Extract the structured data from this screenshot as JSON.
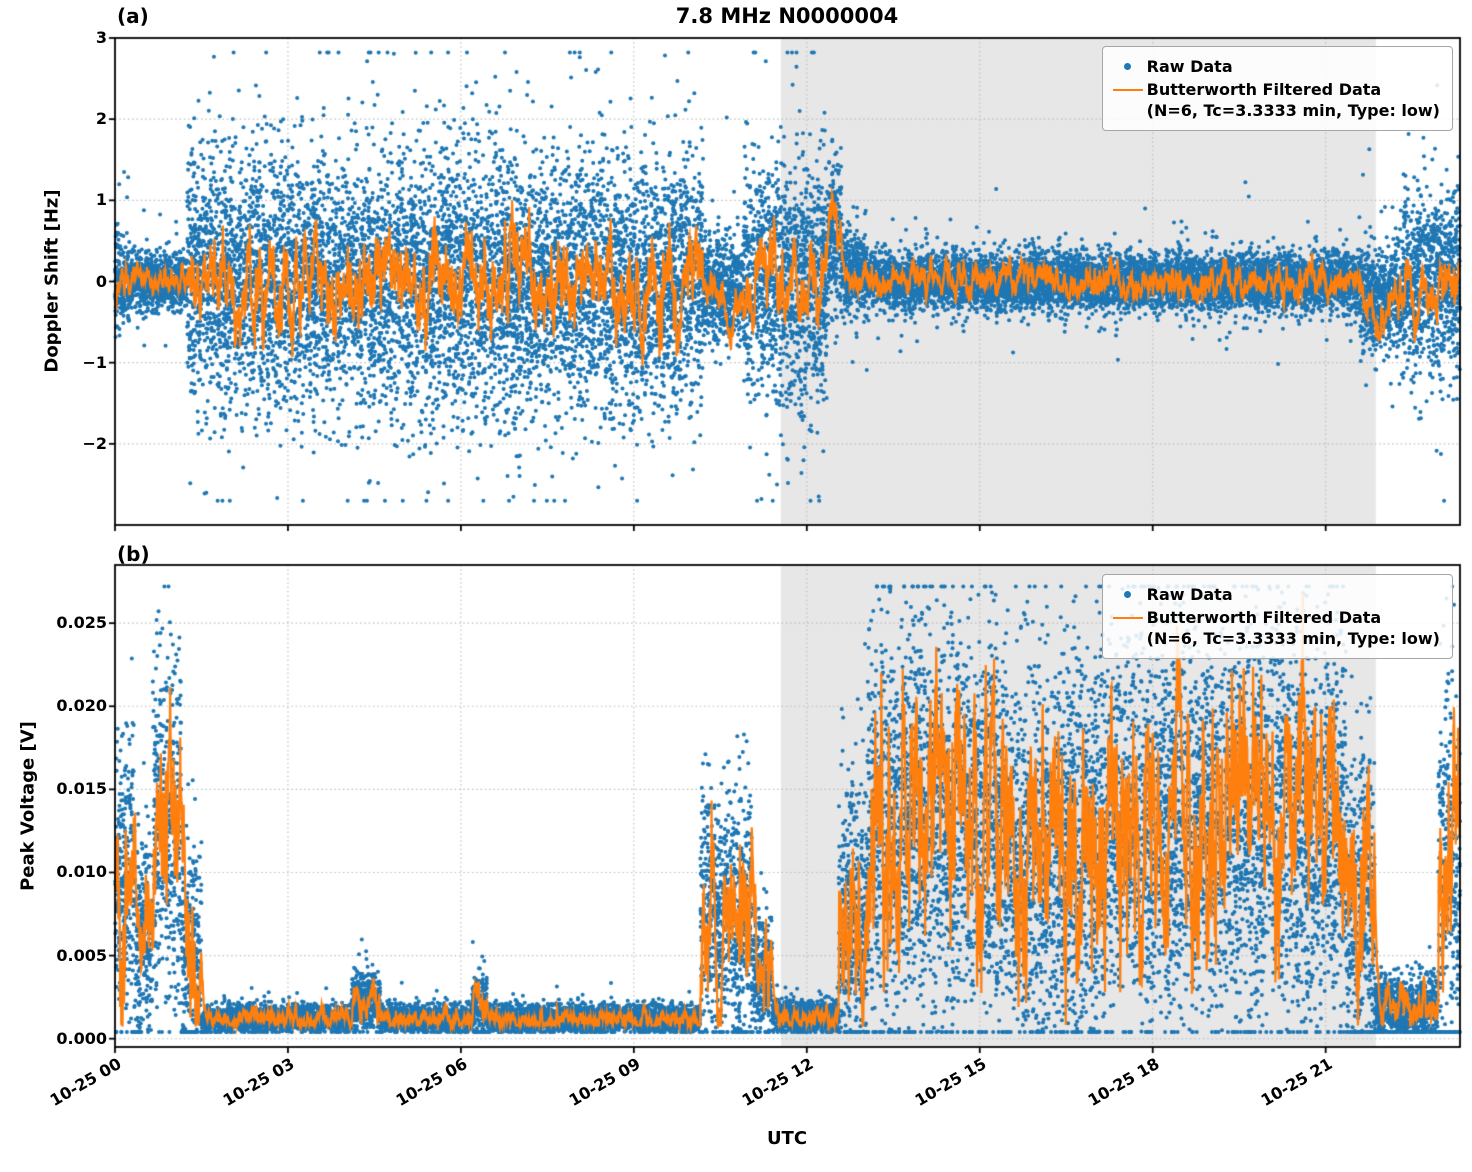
{
  "figure": {
    "title": "7.8 MHz N0000004",
    "xlabel": "UTC",
    "panel_a_tag": "(a)",
    "panel_b_tag": "(b)"
  },
  "legend": {
    "raw_label": "Raw Data",
    "filtered_label": "Butterworth Filtered Data",
    "filtered_sublabel": "(N=6, Tc=3.3333 min, Type: low)"
  },
  "chart_data": {
    "type": "scatter",
    "title": "7.8 MHz N0000004",
    "xlabel": "UTC",
    "x_unit": "hours since 10-25 00:00 UTC",
    "x_range": [
      0,
      23.33
    ],
    "x_ticks": [
      {
        "t": 0,
        "label": "10-25 00"
      },
      {
        "t": 3,
        "label": "10-25 03"
      },
      {
        "t": 6,
        "label": "10-25 06"
      },
      {
        "t": 9,
        "label": "10-25 09"
      },
      {
        "t": 12,
        "label": "10-25 12"
      },
      {
        "t": 15,
        "label": "10-25 15"
      },
      {
        "t": 18,
        "label": "10-25 18"
      },
      {
        "t": 21,
        "label": "10-25 21"
      }
    ],
    "shaded_region": [
      11.55,
      21.87
    ],
    "shade_color": "#e7e7e7",
    "grid_color": "#bdbdbd",
    "colors": {
      "raw": "#1f77b4",
      "filtered": "#ff7f0e"
    },
    "series_labels": {
      "raw": "Raw Data",
      "filtered": "Butterworth Filtered Data (N=6, Tc=3.3333 min, Type: low)"
    },
    "panels": [
      {
        "id": "a",
        "tag": "(a)",
        "ylabel": "Doppler Shift [Hz]",
        "ylim": [
          -3,
          3
        ],
        "yticks": [
          {
            "v": 3,
            "label": "3"
          },
          {
            "v": 2,
            "label": "2"
          },
          {
            "v": 1,
            "label": "1"
          },
          {
            "v": 0,
            "label": "0"
          },
          {
            "v": -1,
            "label": "−1"
          },
          {
            "v": -2,
            "label": "−2"
          }
        ],
        "seed": 42,
        "point_density_per_hour": 850,
        "outlier_prob": 0.045,
        "outlier_scale": 2.3,
        "clamp": [
          -2.7,
          2.82
        ],
        "filter_amp_ratio": 0.45,
        "filter_spikes": [
          {
            "t": 10.68,
            "v": -0.62,
            "w": 0.1
          },
          {
            "t": 12.42,
            "v": 0.5,
            "w": 0.13
          },
          {
            "t": 21.95,
            "v": -0.4,
            "w": 0.12
          }
        ],
        "scatter_segments": [
          {
            "t0": 0.0,
            "t1": 0.25,
            "mean": 0.0,
            "std": 0.3
          },
          {
            "t0": 0.25,
            "t1": 1.25,
            "mean": 0.0,
            "std": 0.17,
            "famp": 0.1
          },
          {
            "t0": 1.25,
            "t1": 10.2,
            "mean": 0.0,
            "std": 0.78
          },
          {
            "t0": 10.2,
            "t1": 10.9,
            "mean": -0.1,
            "std": 0.32
          },
          {
            "t0": 10.9,
            "t1": 12.35,
            "mean": 0.0,
            "std": 0.78
          },
          {
            "t0": 12.35,
            "t1": 12.6,
            "mean": 0.55,
            "std": 0.45
          },
          {
            "t0": 12.6,
            "t1": 13.05,
            "mean": 0.1,
            "std": 0.26,
            "famp": 0.12
          },
          {
            "t0": 13.05,
            "t1": 21.6,
            "mean": 0.0,
            "std": 0.17,
            "famp": 0.13
          },
          {
            "t0": 21.6,
            "t1": 22.35,
            "mean": -0.2,
            "std": 0.3,
            "famp": 0.15
          },
          {
            "t0": 22.35,
            "t1": 23.33,
            "mean": 0.0,
            "std": 0.55,
            "famp": 0.22
          }
        ]
      },
      {
        "id": "b",
        "tag": "(b)",
        "ylabel": "Peak Voltage [V]",
        "ylim": [
          -0.0005,
          0.0285
        ],
        "yticks": [
          {
            "v": 0.0,
            "label": "0.000"
          },
          {
            "v": 0.005,
            "label": "0.005"
          },
          {
            "v": 0.01,
            "label": "0.010"
          },
          {
            "v": 0.015,
            "label": "0.015"
          },
          {
            "v": 0.02,
            "label": "0.020"
          },
          {
            "v": 0.025,
            "label": "0.025"
          }
        ],
        "seed": 1337,
        "point_density_per_hour": 800,
        "outlier_prob": 0.03,
        "outlier_scale": 1.9,
        "clamp": [
          0.0004,
          0.0272
        ],
        "filter_amp_ratio": 0.85,
        "filter_floor": 0.0008,
        "filter_spikes": [],
        "scatter_segments": [
          {
            "t0": 0.0,
            "t1": 0.35,
            "mean": 0.01,
            "std": 0.0045
          },
          {
            "t0": 0.35,
            "t1": 0.65,
            "mean": 0.006,
            "std": 0.003
          },
          {
            "t0": 0.65,
            "t1": 1.15,
            "mean": 0.013,
            "std": 0.005
          },
          {
            "t0": 1.15,
            "t1": 1.5,
            "mean": 0.005,
            "std": 0.0035
          },
          {
            "t0": 1.5,
            "t1": 4.1,
            "mean": 0.0012,
            "std": 0.0004
          },
          {
            "t0": 4.1,
            "t1": 4.6,
            "mean": 0.0022,
            "std": 0.0009
          },
          {
            "t0": 4.6,
            "t1": 6.2,
            "mean": 0.0012,
            "std": 0.0004
          },
          {
            "t0": 6.2,
            "t1": 6.45,
            "mean": 0.002,
            "std": 0.001
          },
          {
            "t0": 6.45,
            "t1": 10.15,
            "mean": 0.0012,
            "std": 0.0004
          },
          {
            "t0": 10.15,
            "t1": 11.05,
            "mean": 0.0075,
            "std": 0.004
          },
          {
            "t0": 11.05,
            "t1": 11.4,
            "mean": 0.004,
            "std": 0.002
          },
          {
            "t0": 11.4,
            "t1": 12.55,
            "mean": 0.0013,
            "std": 0.0005
          },
          {
            "t0": 12.55,
            "t1": 13.05,
            "mean": 0.007,
            "std": 0.0045
          },
          {
            "t0": 13.05,
            "t1": 15.3,
            "mean": 0.013,
            "std": 0.0062
          },
          {
            "t0": 15.3,
            "t1": 17.1,
            "mean": 0.011,
            "std": 0.006
          },
          {
            "t0": 17.1,
            "t1": 21.35,
            "mean": 0.013,
            "std": 0.006
          },
          {
            "t0": 21.35,
            "t1": 21.85,
            "mean": 0.008,
            "std": 0.005
          },
          {
            "t0": 21.85,
            "t1": 22.95,
            "mean": 0.0018,
            "std": 0.001
          },
          {
            "t0": 22.95,
            "t1": 23.33,
            "mean": 0.01,
            "std": 0.006
          }
        ]
      }
    ]
  }
}
